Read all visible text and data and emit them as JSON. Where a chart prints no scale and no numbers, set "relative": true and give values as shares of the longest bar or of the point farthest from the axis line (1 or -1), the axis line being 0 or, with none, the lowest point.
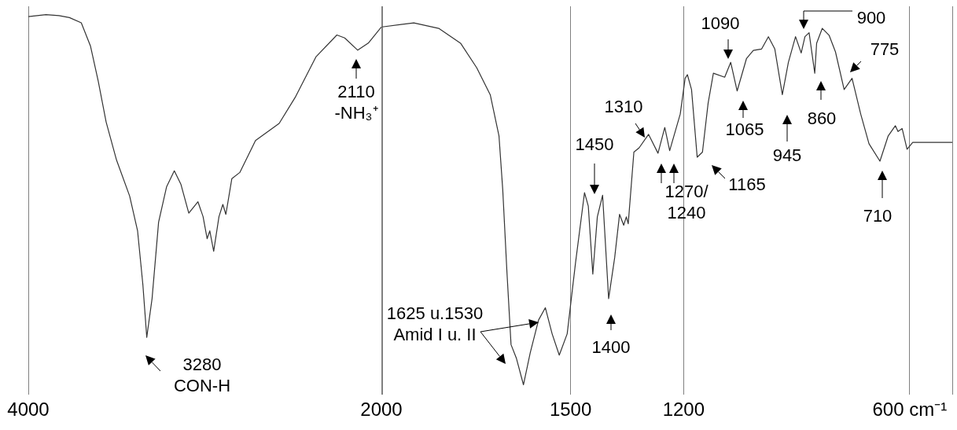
{
  "chart_data": [
    {
      "type": "line",
      "relative": true,
      "color": "#333333",
      "grid": "x",
      "legend": false,
      "xlim": [
        4000,
        2000
      ],
      "xticks": [
        4000,
        2000
      ],
      "x": [
        4000,
        3900,
        3826,
        3767,
        3700,
        3648,
        3604,
        3559,
        3500,
        3426,
        3381,
        3351,
        3329,
        3299,
        3262,
        3217,
        3173,
        3136,
        3091,
        3039,
        3010,
        2987,
        2972,
        2950,
        2920,
        2898,
        2881,
        2847,
        2802,
        2713,
        2579,
        2489,
        2371,
        2252,
        2208,
        2134,
        2074,
        2000
      ],
      "values": [
        0.994,
        1.0,
        0.997,
        0.991,
        0.975,
        0.903,
        0.794,
        0.667,
        0.549,
        0.438,
        0.33,
        0.163,
        0.0,
        0.12,
        0.357,
        0.466,
        0.516,
        0.475,
        0.385,
        0.42,
        0.374,
        0.306,
        0.33,
        0.267,
        0.374,
        0.412,
        0.381,
        0.492,
        0.511,
        0.61,
        0.663,
        0.743,
        0.869,
        0.937,
        0.928,
        0.89,
        0.912,
        0.962
      ],
      "annotations": [
        "3280\nCON-H",
        "2110\n-NH₃⁺"
      ]
    },
    {
      "type": "line",
      "relative": true,
      "color": "#333333",
      "grid": "x",
      "legend": false,
      "xlim": [
        2000,
        487
      ],
      "xticks": [
        {
          "value": 2000,
          "label": null
        },
        1500,
        1200,
        {
          "value": 600,
          "label": "600 cm⁻¹"
        },
        {
          "value": 487,
          "label": null
        }
      ],
      "x": [
        2000,
        1916,
        1850,
        1792,
        1749,
        1713,
        1690,
        1680,
        1669,
        1658,
        1644,
        1625,
        1607,
        1585,
        1567,
        1549,
        1530,
        1509,
        1487,
        1463,
        1453,
        1441,
        1429,
        1415,
        1399,
        1383,
        1370,
        1359,
        1352,
        1347,
        1332,
        1318,
        1293,
        1268,
        1250,
        1237,
        1209,
        1196,
        1190,
        1179,
        1164,
        1150,
        1135,
        1121,
        1091,
        1075,
        1058,
        1033,
        1015,
        993,
        975,
        958,
        938,
        922,
        903,
        888,
        878,
        867,
        852,
        847,
        832,
        814,
        797,
        774,
        753,
        730,
        708,
        679,
        657,
        638,
        631,
        620,
        607,
        592,
        487
      ],
      "values": [
        0.989,
        1.0,
        0.985,
        0.944,
        0.876,
        0.801,
        0.688,
        0.539,
        0.314,
        0.111,
        0.074,
        0.0,
        0.089,
        0.179,
        0.213,
        0.141,
        0.082,
        0.141,
        0.336,
        0.531,
        0.494,
        0.306,
        0.464,
        0.524,
        0.238,
        0.351,
        0.471,
        0.441,
        0.464,
        0.445,
        0.643,
        0.655,
        0.692,
        0.64,
        0.711,
        0.647,
        0.748,
        0.847,
        0.857,
        0.816,
        0.629,
        0.643,
        0.778,
        0.861,
        0.85,
        0.891,
        0.812,
        0.902,
        0.924,
        0.928,
        0.962,
        0.928,
        0.802,
        0.891,
        0.962,
        0.917,
        0.962,
        0.973,
        0.861,
        0.944,
        0.985,
        0.966,
        0.92,
        0.816,
        0.847,
        0.748,
        0.666,
        0.618,
        0.688,
        0.716,
        0.7,
        0.708,
        0.651,
        0.67,
        0.67
      ],
      "annotations": [
        "1625 u.1530\nAmid I u. II",
        "1450",
        "1400",
        "1310",
        "1270/\n1240",
        "1165",
        "1090",
        "1065",
        "945",
        "860",
        "900",
        "775",
        "710"
      ]
    }
  ]
}
